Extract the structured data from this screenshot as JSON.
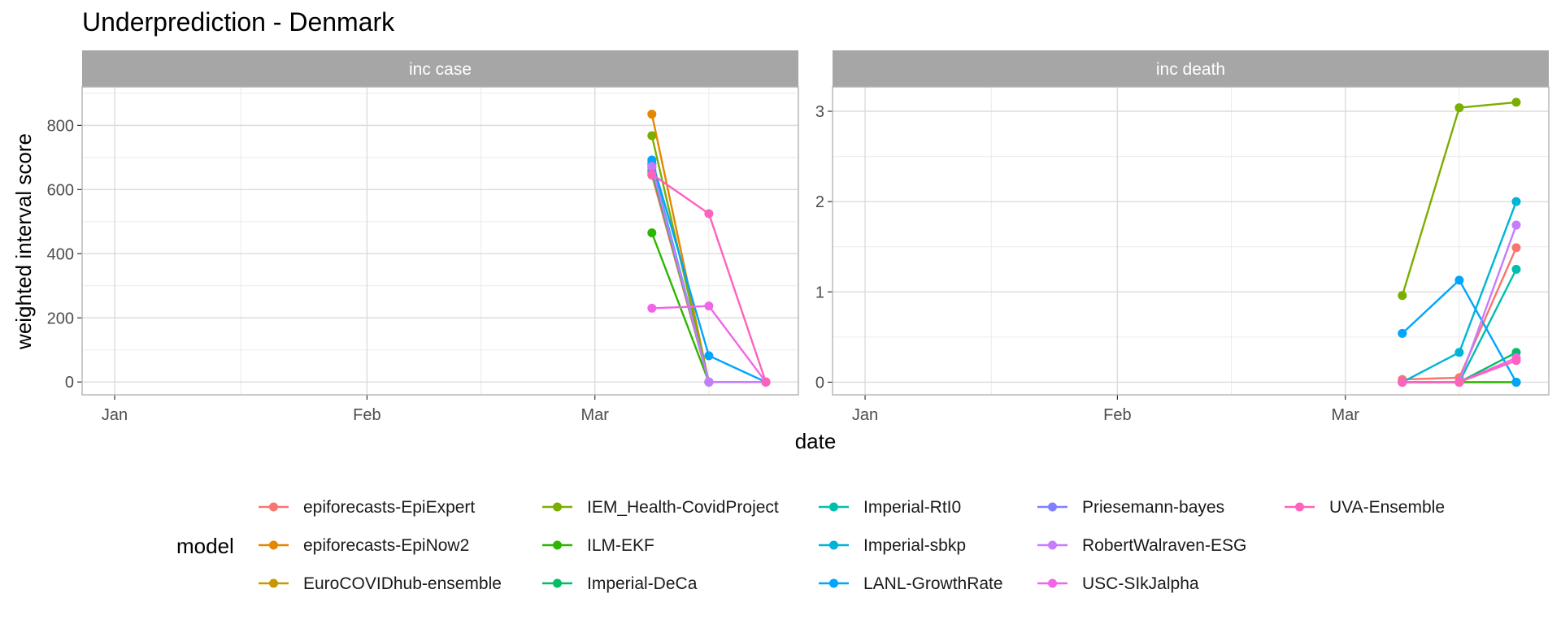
{
  "title": "Underprediction - Denmark",
  "legend_title": "model",
  "models": [
    {
      "name": "epiforecasts-EpiExpert",
      "color": "#F8766D"
    },
    {
      "name": "epiforecasts-EpiNow2",
      "color": "#E58700"
    },
    {
      "name": "EuroCOVIDhub-ensemble",
      "color": "#C99800"
    },
    {
      "name": "IEM_Health-CovidProject",
      "color": "#7CAE00"
    },
    {
      "name": "ILM-EKF",
      "color": "#2DB600"
    },
    {
      "name": "Imperial-DeCa",
      "color": "#00BE67"
    },
    {
      "name": "Imperial-RtI0",
      "color": "#00BFAE"
    },
    {
      "name": "Imperial-sbkp",
      "color": "#00B4D8"
    },
    {
      "name": "LANL-GrowthRate",
      "color": "#00A5FF"
    },
    {
      "name": "Priesemann-bayes",
      "color": "#7F7FFF"
    },
    {
      "name": "RobertWalraven-ESG",
      "color": "#C77CFF"
    },
    {
      "name": "USC-SIkJalpha",
      "color": "#F166E8"
    },
    {
      "name": "UVA-Ensemble",
      "color": "#FF62BC"
    }
  ],
  "chart_data": {
    "type": "line",
    "xlabel": "date",
    "ylabel": "weighted interval score",
    "x_tick_labels": [
      "Jan",
      "Feb",
      "Mar"
    ],
    "x_ticks": [
      "2021-01-01",
      "2021-02-01",
      "2021-03-01"
    ],
    "xlim": [
      "2020-12-28",
      "2021-03-26"
    ],
    "grid": true,
    "legend_position": "bottom",
    "panels": [
      {
        "strip_label": "inc case",
        "ylim": [
          -40,
          920
        ],
        "y_ticks": [
          0,
          200,
          400,
          600,
          800
        ],
        "series": [
          {
            "name": "epiforecasts-EpiExpert",
            "x": [
              "2021-03-08",
              "2021-03-15",
              "2021-03-22"
            ],
            "y": [
              645,
              0,
              0
            ]
          },
          {
            "name": "epiforecasts-EpiNow2",
            "x": [
              "2021-03-08",
              "2021-03-15",
              "2021-03-22"
            ],
            "y": [
              835,
              0,
              0
            ]
          },
          {
            "name": "EuroCOVIDhub-ensemble",
            "x": [
              "2021-03-08",
              "2021-03-15",
              "2021-03-22"
            ],
            "y": [
              655,
              0,
              0
            ]
          },
          {
            "name": "IEM_Health-CovidProject",
            "x": [
              "2021-03-08",
              "2021-03-15",
              "2021-03-22"
            ],
            "y": [
              768,
              0,
              0
            ]
          },
          {
            "name": "ILM-EKF",
            "x": [
              "2021-03-08",
              "2021-03-15",
              "2021-03-22"
            ],
            "y": [
              465,
              0,
              0
            ]
          },
          {
            "name": "Imperial-DeCa",
            "x": [
              "2021-03-08",
              "2021-03-15",
              "2021-03-22"
            ],
            "y": [
              660,
              0,
              0
            ]
          },
          {
            "name": "Imperial-RtI0",
            "x": [
              "2021-03-08",
              "2021-03-15",
              "2021-03-22"
            ],
            "y": [
              680,
              0,
              0
            ]
          },
          {
            "name": "Imperial-sbkp",
            "x": [
              "2021-03-08",
              "2021-03-15",
              "2021-03-22"
            ],
            "y": [
              682,
              0,
              0
            ]
          },
          {
            "name": "LANL-GrowthRate",
            "x": [
              "2021-03-08",
              "2021-03-15",
              "2021-03-22"
            ],
            "y": [
              692,
              82,
              0
            ]
          },
          {
            "name": "Priesemann-bayes",
            "x": [
              "2021-03-08",
              "2021-03-15",
              "2021-03-22"
            ],
            "y": [
              670,
              0,
              0
            ]
          },
          {
            "name": "RobertWalraven-ESG",
            "x": [
              "2021-03-08",
              "2021-03-15",
              "2021-03-22"
            ],
            "y": [
              672,
              0,
              0
            ]
          },
          {
            "name": "USC-SIkJalpha",
            "x": [
              "2021-03-08",
              "2021-03-15",
              "2021-03-22"
            ],
            "y": [
              230,
              237,
              0
            ]
          },
          {
            "name": "UVA-Ensemble",
            "x": [
              "2021-03-08",
              "2021-03-15",
              "2021-03-22"
            ],
            "y": [
              648,
              525,
              0
            ]
          }
        ]
      },
      {
        "strip_label": "inc death",
        "ylim": [
          -0.14,
          3.27
        ],
        "y_ticks": [
          0,
          1,
          2,
          3
        ],
        "series": [
          {
            "name": "epiforecasts-EpiExpert",
            "x": [
              "2021-03-08",
              "2021-03-15",
              "2021-03-22"
            ],
            "y": [
              0.03,
              0.05,
              1.49
            ]
          },
          {
            "name": "epiforecasts-EpiNow2",
            "x": [
              "2021-03-08",
              "2021-03-15",
              "2021-03-22"
            ],
            "y": [
              0.0,
              0.0,
              0.0
            ]
          },
          {
            "name": "IEM_Health-CovidProject",
            "x": [
              "2021-03-08",
              "2021-03-15",
              "2021-03-22"
            ],
            "y": [
              0.96,
              3.04,
              3.1
            ]
          },
          {
            "name": "ILM-EKF",
            "x": [
              "2021-03-08",
              "2021-03-15",
              "2021-03-22"
            ],
            "y": [
              0.0,
              0.0,
              0.0
            ]
          },
          {
            "name": "Imperial-DeCa",
            "x": [
              "2021-03-08",
              "2021-03-15",
              "2021-03-22"
            ],
            "y": [
              0.0,
              0.0,
              0.33
            ]
          },
          {
            "name": "Imperial-RtI0",
            "x": [
              "2021-03-08",
              "2021-03-15",
              "2021-03-22"
            ],
            "y": [
              0.0,
              0.0,
              1.25
            ]
          },
          {
            "name": "Imperial-sbkp",
            "x": [
              "2021-03-08",
              "2021-03-15",
              "2021-03-22"
            ],
            "y": [
              0.0,
              0.33,
              2.0
            ]
          },
          {
            "name": "LANL-GrowthRate",
            "x": [
              "2021-03-08",
              "2021-03-15",
              "2021-03-22"
            ],
            "y": [
              0.54,
              1.13,
              0.0
            ]
          },
          {
            "name": "RobertWalraven-ESG",
            "x": [
              "2021-03-08",
              "2021-03-15",
              "2021-03-22"
            ],
            "y": [
              0.0,
              0.0,
              1.74
            ]
          },
          {
            "name": "USC-SIkJalpha",
            "x": [
              "2021-03-08",
              "2021-03-15",
              "2021-03-22"
            ],
            "y": [
              0.0,
              0.0,
              0.27
            ]
          },
          {
            "name": "UVA-Ensemble",
            "x": [
              "2021-03-08",
              "2021-03-15",
              "2021-03-22"
            ],
            "y": [
              0.0,
              0.0,
              0.24
            ]
          }
        ]
      }
    ]
  }
}
